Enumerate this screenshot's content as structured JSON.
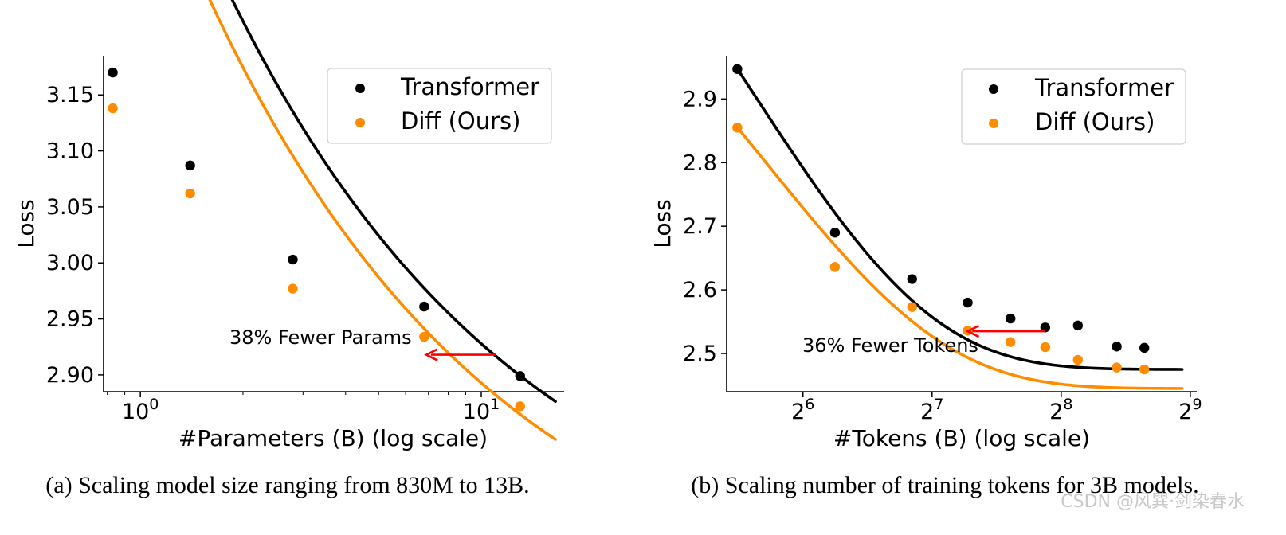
{
  "chart_data": [
    {
      "type": "scatter",
      "xscale": "log",
      "xlim": [
        0.78,
        17.5
      ],
      "ylim": [
        2.885,
        3.185
      ],
      "xlabel": "#Parameters (B) (log scale)",
      "ylabel": "Loss",
      "ytick_values": [
        2.9,
        2.95,
        3.0,
        3.05,
        3.1,
        3.15
      ],
      "ytick_labels": [
        "2.90",
        "2.95",
        "3.00",
        "3.05",
        "3.10",
        "3.15"
      ],
      "xtick_values": [
        1,
        10
      ],
      "xtick_bases": [
        "10",
        "10"
      ],
      "xtick_exponents": [
        "0",
        "1"
      ],
      "legend_location": "upper right",
      "series": [
        {
          "name": "Transformer",
          "color": "#000000",
          "x": [
            0.83,
            1.4,
            2.8,
            6.8,
            13
          ],
          "y": [
            3.17,
            3.087,
            3.003,
            2.961,
            2.899
          ],
          "fit": {
            "a": 0.01,
            "b": 0.7365,
            "c": 2.695
          }
        },
        {
          "name": "Diff (Ours)",
          "color": "#ff8c00",
          "x": [
            0.83,
            1.4,
            2.8,
            6.8,
            13
          ],
          "y": [
            3.138,
            3.062,
            2.977,
            2.934,
            2.872
          ],
          "fit": {
            "a": 0.01,
            "b": 0.7205,
            "c": 2.665
          }
        }
      ],
      "annotation": {
        "text": "38% Fewer Params",
        "arrow_from": {
          "x": 11.0,
          "y": 2.918
        },
        "arrow_to": {
          "x": 6.9,
          "y": 2.918
        },
        "color": "#ff0000"
      },
      "caption": "(a) Scaling model size ranging from 830M to 13B."
    },
    {
      "type": "scatter",
      "xscale": "log",
      "xlim": [
        42.5,
        530
      ],
      "ylim": [
        2.44,
        2.968
      ],
      "xlabel": "#Tokens (B) (log scale)",
      "ylabel": "Loss",
      "ytick_values": [
        2.5,
        2.6,
        2.7,
        2.8,
        2.9
      ],
      "ytick_labels": [
        "2.5",
        "2.6",
        "2.7",
        "2.8",
        "2.9"
      ],
      "xtick_values": [
        64,
        128,
        256,
        512
      ],
      "xtick_bases": [
        "2",
        "2",
        "2",
        "2"
      ],
      "xtick_exponents": [
        "6",
        "7",
        "8",
        "9"
      ],
      "legend_location": "upper right",
      "series": [
        {
          "name": "Transformer",
          "color": "#000000",
          "x": [
            45,
            76,
            115,
            155,
            195,
            235,
            280,
            345,
            400
          ],
          "y": [
            2.947,
            2.69,
            2.617,
            2.58,
            2.555,
            2.541,
            2.544,
            2.511,
            2.509
          ],
          "fit": {
            "x0": 45,
            "a": 0.4725,
            "b": 0.02105,
            "c": 2.475
          }
        },
        {
          "name": "Diff (Ours)",
          "color": "#ff8c00",
          "x": [
            45,
            76,
            115,
            155,
            195,
            235,
            280,
            345,
            400
          ],
          "y": [
            2.855,
            2.636,
            2.573,
            2.536,
            2.518,
            2.51,
            2.49,
            2.478,
            2.475
          ],
          "fit": {
            "x0": 45,
            "a": 0.4105,
            "b": 0.0194,
            "c": 2.445
          }
        }
      ],
      "annotation": {
        "text": "36% Fewer Tokens",
        "arrow_from": {
          "x": 235,
          "y": 2.535
        },
        "arrow_to": {
          "x": 155,
          "y": 2.535
        },
        "color": "#ff0000"
      },
      "caption": "(b) Scaling number of training tokens for 3B models."
    }
  ],
  "watermark": "CSDN @风巽·剑染春水"
}
